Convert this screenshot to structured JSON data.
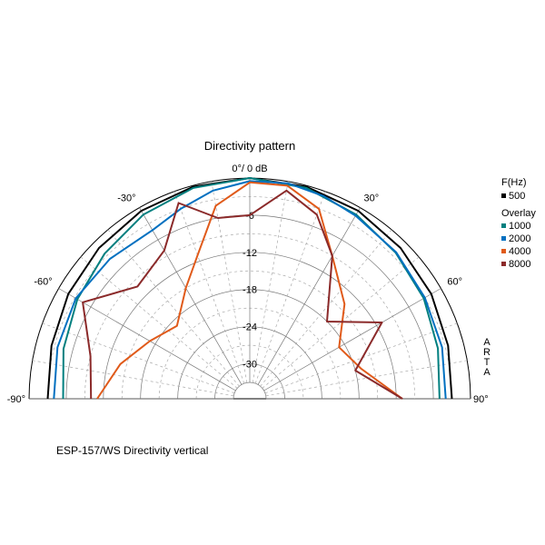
{
  "chart_data": {
    "type": "polar-half",
    "title": "Directivity pattern",
    "angle_ticks": [
      "-90°",
      "-60°",
      "-30°",
      "0°/ 0 dB",
      "30°",
      "60°",
      "90°"
    ],
    "db_tick_labels": [
      "-6",
      "-12",
      "-18",
      "-24",
      "-30"
    ],
    "db_range": [
      -33,
      0
    ],
    "grid": true,
    "watermark": "ARTA",
    "legend": {
      "position": "right",
      "freq_header": "F(Hz)",
      "overlay_header": "Overlay",
      "items": [
        {
          "label": "500",
          "color": "#000000"
        },
        {
          "label": "1000",
          "color": "#007f7f"
        },
        {
          "label": "2000",
          "color": "#0070c0"
        },
        {
          "label": "4000",
          "color": "#e05a1a"
        },
        {
          "label": "8000",
          "color": "#8b2a2a"
        }
      ]
    },
    "series": [
      {
        "name": "500",
        "color": "#000000",
        "angles": [
          -90,
          -75,
          -60,
          -45,
          -30,
          -15,
          0,
          15,
          30,
          45,
          60,
          75,
          90
        ],
        "db": [
          -3,
          -2.5,
          -1.8,
          -1.2,
          -0.6,
          -0.2,
          0,
          -0.2,
          -0.6,
          -1.2,
          -1.8,
          -2.5,
          -3
        ]
      },
      {
        "name": "1000",
        "color": "#007f7f",
        "angles": [
          -90,
          -75,
          -60,
          -45,
          -30,
          -15,
          0,
          15,
          30,
          45,
          60,
          75,
          90
        ],
        "db": [
          -5.5,
          -4.5,
          -3.5,
          -2.5,
          -1.3,
          -0.4,
          0,
          -0.4,
          -1.3,
          -2.3,
          -3.2,
          -4.2,
          -5
        ]
      },
      {
        "name": "2000",
        "color": "#0070c0",
        "angles": [
          -90,
          -75,
          -60,
          -45,
          -30,
          -20,
          -10,
          0,
          10,
          20,
          30,
          45,
          60,
          75,
          90
        ],
        "db": [
          -4,
          -3.5,
          -3.2,
          -3.7,
          -4.2,
          -3,
          -1.5,
          -0.5,
          -0.3,
          -0.8,
          -1.5,
          -2.2,
          -3,
          -3.5,
          -4
        ]
      },
      {
        "name": "4000",
        "color": "#e05a1a",
        "angles": [
          -90,
          -75,
          -60,
          -45,
          -30,
          -20,
          -10,
          0,
          10,
          20,
          30,
          45,
          60,
          75,
          90
        ],
        "db": [
          -11,
          -14,
          -17,
          -19,
          -15,
          -11,
          -4,
          -0.7,
          -0.7,
          -3,
          -9,
          -14,
          -19,
          -17,
          -11
        ]
      },
      {
        "name": "8000",
        "color": "#8b2a2a",
        "angles": [
          -90,
          -75,
          -60,
          -45,
          -30,
          -20,
          -10,
          0,
          10,
          20,
          30,
          45,
          60,
          75,
          90
        ],
        "db": [
          -10,
          -9,
          -4.5,
          -10,
          -8,
          -2,
          -6,
          -6,
          -1.5,
          -4,
          -9,
          -18,
          -11,
          -18,
          -11
        ]
      }
    ]
  },
  "footer": {
    "caption": "ESP-157/WS  Directivity vertical"
  }
}
